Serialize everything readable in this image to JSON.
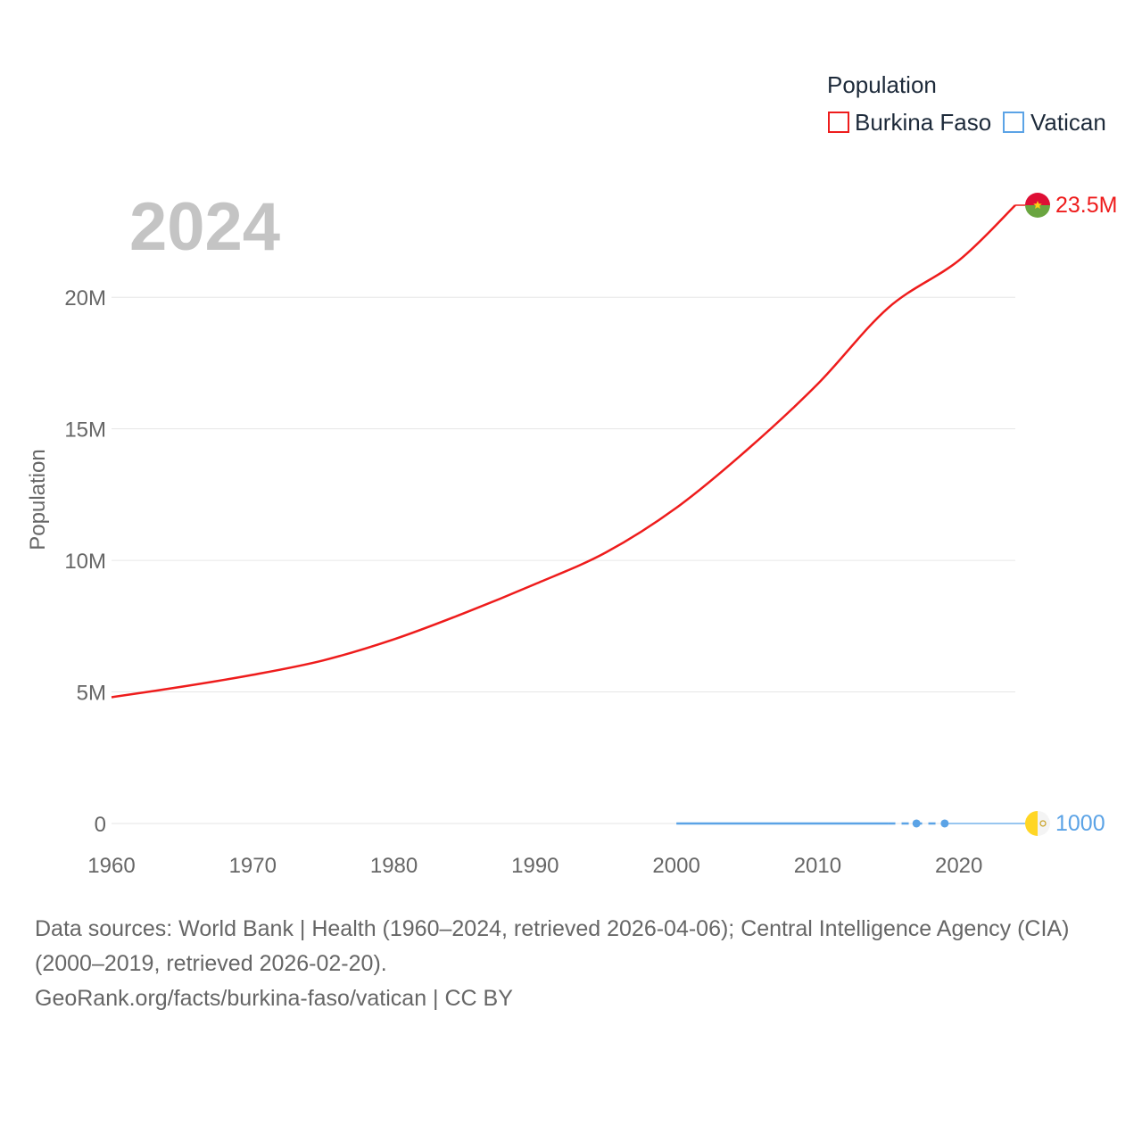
{
  "chart_data": {
    "type": "line",
    "title": "",
    "current_year_label": "2024",
    "xlabel": "",
    "ylabel": "Population",
    "xlim": [
      1960,
      2024
    ],
    "ylim": [
      0,
      23500000
    ],
    "x_ticks": [
      1960,
      1970,
      1980,
      1990,
      2000,
      2010,
      2020
    ],
    "x_tick_labels": [
      "1960",
      "1970",
      "1980",
      "1990",
      "2000",
      "2010",
      "2020"
    ],
    "y_ticks": [
      0,
      5000000,
      10000000,
      15000000,
      20000000
    ],
    "y_tick_labels": [
      "0",
      "5M",
      "10M",
      "15M",
      "20M"
    ],
    "legend": {
      "title": "Population",
      "position": "top-right",
      "entries": [
        {
          "name": "Burkina Faso",
          "color": "#ee1c1c"
        },
        {
          "name": "Vatican",
          "color": "#5ba3e6"
        }
      ]
    },
    "series": [
      {
        "name": "Burkina Faso",
        "color": "#ee1c1c",
        "end_label": "23.5M",
        "flag_colors": [
          "#de0f35",
          "#6aa540",
          "#fcd116"
        ],
        "x": [
          1960,
          1965,
          1970,
          1975,
          1980,
          1985,
          1990,
          1995,
          2000,
          2005,
          2010,
          2015,
          2020,
          2024
        ],
        "values": [
          4800000,
          5200000,
          5650000,
          6200000,
          7000000,
          8000000,
          9100000,
          10300000,
          12000000,
          14200000,
          16700000,
          19600000,
          21400000,
          23500000
        ]
      },
      {
        "name": "Vatican",
        "color": "#5ba3e6",
        "end_label": "1000",
        "flag_colors": [
          "#ffd625",
          "#f4f4f4"
        ],
        "x": [
          2000,
          2015,
          2017,
          2019,
          2024
        ],
        "values": [
          1000,
          1000,
          1000,
          1000,
          1000
        ],
        "solid_until": 2015,
        "dashed_from": 2015,
        "dashed_until": 2019,
        "markers_at": [
          2017,
          2019
        ]
      }
    ]
  },
  "footer": {
    "sources": "Data sources: World Bank | Health (1960–2024, retrieved 2026-04-06); Central Intelligence Agency (CIA) (2000–2019, retrieved 2026-02-20).",
    "attribution": "GeoRank.org/facts/burkina-faso/vatican | CC BY"
  }
}
